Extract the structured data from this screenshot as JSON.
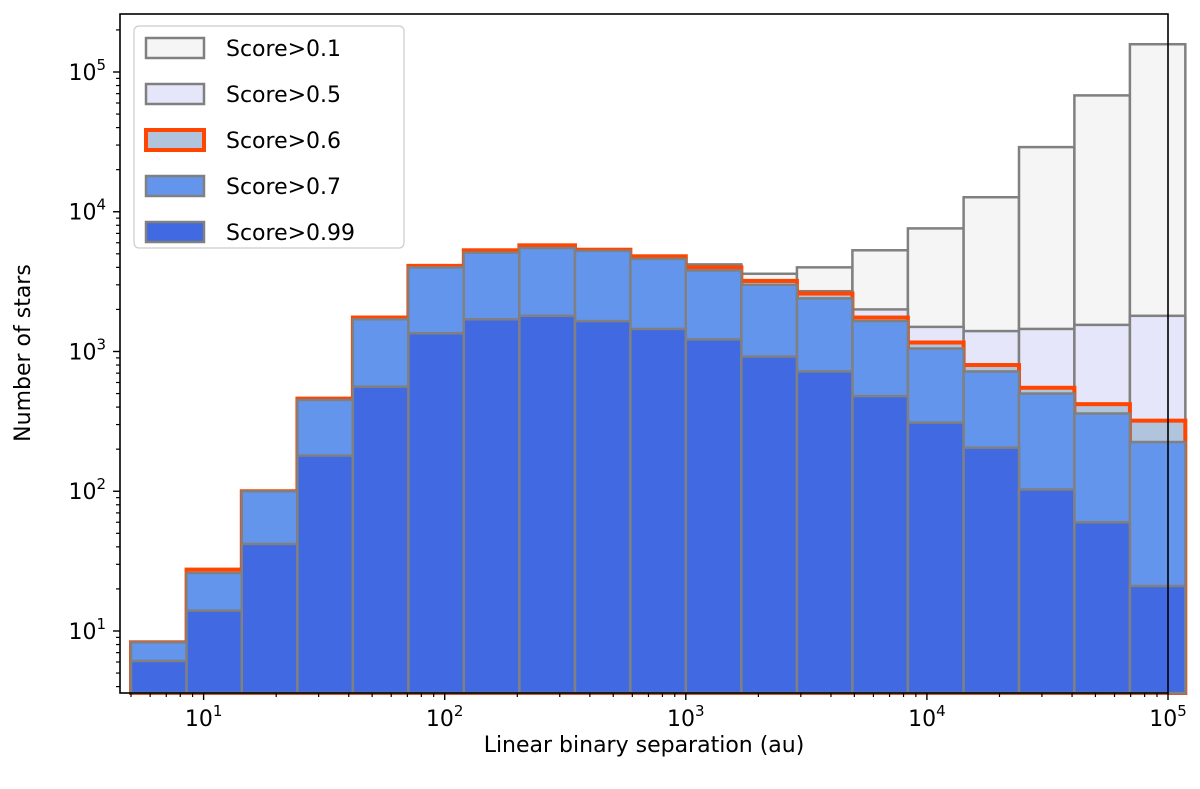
{
  "chart_data": {
    "type": "histogram",
    "xlabel": "Linear binary separation (au)",
    "ylabel": "Number of stars",
    "x_scale": "log",
    "y_scale": "log",
    "xlim": [
      4.5,
      100000
    ],
    "ylim": [
      3.6,
      260000
    ],
    "x_ticks": [
      {
        "base": "10",
        "exp": "1",
        "value": 10
      },
      {
        "base": "10",
        "exp": "2",
        "value": 100
      },
      {
        "base": "10",
        "exp": "3",
        "value": 1000
      },
      {
        "base": "10",
        "exp": "4",
        "value": 10000
      },
      {
        "base": "10",
        "exp": "5",
        "value": 100000
      }
    ],
    "y_ticks": [
      {
        "base": "10",
        "exp": "1",
        "value": 10
      },
      {
        "base": "10",
        "exp": "2",
        "value": 100
      },
      {
        "base": "10",
        "exp": "3",
        "value": 1000
      },
      {
        "base": "10",
        "exp": "4",
        "value": 10000
      },
      {
        "base": "10",
        "exp": "5",
        "value": 100000
      }
    ],
    "bin_edges": [
      5,
      8.5,
      14.4,
      24.5,
      41.6,
      70.7,
      120,
      204,
      347,
      589,
      1000,
      1700,
      2890,
      4910,
      8340,
      14200,
      24100,
      40900,
      69500,
      118000
    ],
    "legend_position": "upper-left",
    "series": [
      {
        "name": "Score>0.1",
        "fill": "#f5f5f5",
        "edge": "#808080",
        "edge_width": 2.5,
        "values": [
          8.3,
          27.5,
          100,
          460,
          1750,
          4100,
          5300,
          5750,
          5350,
          4800,
          4200,
          3600,
          4000,
          5300,
          7600,
          12700,
          29000,
          68000,
          158000
        ]
      },
      {
        "name": "Score>0.5",
        "fill": "#e6e6fa",
        "edge": "#808080",
        "edge_width": 2.5,
        "values": [
          8.3,
          27.5,
          100,
          460,
          1750,
          4100,
          5300,
          5750,
          5350,
          4800,
          4000,
          3200,
          2700,
          2000,
          1500,
          1400,
          1450,
          1550,
          1800
        ]
      },
      {
        "name": "Score>0.6",
        "fill": "#b0c4de",
        "edge": "#ff4500",
        "edge_width": 4,
        "values": [
          8.3,
          27.5,
          100,
          460,
          1750,
          4100,
          5300,
          5750,
          5350,
          4800,
          4000,
          3200,
          2600,
          1750,
          1160,
          800,
          550,
          420,
          320
        ]
      },
      {
        "name": "Score>0.7",
        "fill": "#6495ed",
        "edge": "#808080",
        "edge_width": 2.5,
        "values": [
          8.3,
          26,
          100,
          450,
          1700,
          4000,
          5100,
          5500,
          5250,
          4600,
          3800,
          3000,
          2400,
          1650,
          1050,
          720,
          500,
          360,
          225
        ]
      },
      {
        "name": "Score>0.99",
        "fill": "#4169e1",
        "edge": "#808080",
        "edge_width": 2.5,
        "values": [
          6.1,
          14,
          42,
          180,
          560,
          1350,
          1700,
          1800,
          1650,
          1450,
          1220,
          920,
          720,
          480,
          310,
          205,
          103,
          60,
          21
        ]
      }
    ]
  }
}
